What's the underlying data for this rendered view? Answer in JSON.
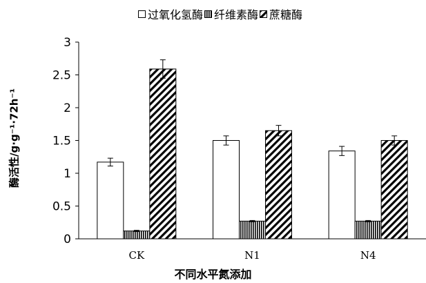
{
  "chart_data": {
    "type": "bar",
    "categories": [
      "CK",
      "N1",
      "N4"
    ],
    "series": [
      {
        "name": "过氧化氢酶",
        "pattern": "white",
        "values": [
          1.17,
          1.5,
          1.34
        ],
        "errors": [
          0.06,
          0.07,
          0.07
        ]
      },
      {
        "name": "纤维素酶",
        "pattern": "vertical-lines",
        "values": [
          0.12,
          0.27,
          0.27
        ],
        "errors": [
          0.01,
          0.01,
          0.01
        ]
      },
      {
        "name": "蔗糖酶",
        "pattern": "diagonal-lines",
        "values": [
          2.59,
          1.65,
          1.5
        ],
        "errors": [
          0.14,
          0.08,
          0.07
        ]
      }
    ],
    "xlabel": "不同水平氮添加",
    "ylabel": "酶活性/g·g⁻¹·72h⁻¹",
    "ylim": [
      0,
      3
    ],
    "yticks": [
      "0",
      "0.5",
      "1",
      "1.5",
      "2",
      "2.5",
      "3"
    ],
    "grid": false,
    "legend": "top"
  },
  "colors": {
    "bar_edge": "#000000",
    "fill": "#ffffff",
    "axis": "#000000"
  }
}
